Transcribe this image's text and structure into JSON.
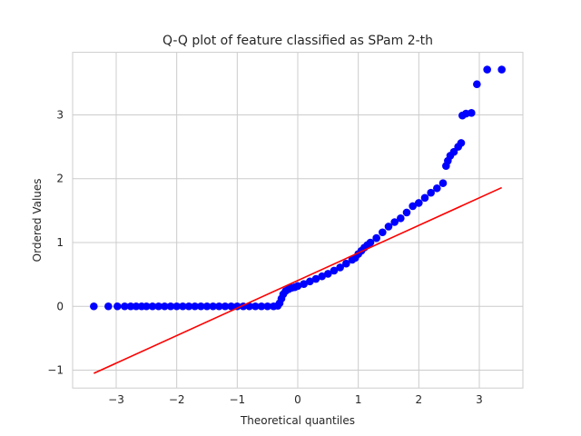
{
  "chart_data": {
    "type": "scatter",
    "title": "Q-Q plot of feature classified as SPam 2-th",
    "xlabel": "Theoretical quantiles",
    "ylabel": "Ordered Values",
    "xlim": [
      -3.72,
      3.72
    ],
    "ylim": [
      -1.28,
      3.98
    ],
    "x_ticks": [
      -3,
      -2,
      -1,
      0,
      1,
      2,
      3
    ],
    "y_ticks": [
      -1,
      0,
      1,
      2,
      3
    ],
    "x_tick_labels": [
      "−3",
      "−2",
      "−1",
      "0",
      "1",
      "2",
      "3"
    ],
    "y_tick_labels": [
      "−1",
      "0",
      "1",
      "2",
      "3"
    ],
    "grid": true,
    "series": [
      {
        "kind": "points",
        "color": "#0000ff",
        "points": [
          [
            -3.37,
            0.0
          ],
          [
            -3.13,
            0.0
          ],
          [
            -2.98,
            0.0
          ],
          [
            -2.86,
            0.0
          ],
          [
            -2.76,
            0.0
          ],
          [
            -2.67,
            0.0
          ],
          [
            -2.58,
            0.0
          ],
          [
            -2.5,
            0.0
          ],
          [
            -2.4,
            0.0
          ],
          [
            -2.3,
            0.0
          ],
          [
            -2.2,
            0.0
          ],
          [
            -2.1,
            0.0
          ],
          [
            -2.0,
            0.0
          ],
          [
            -1.9,
            0.0
          ],
          [
            -1.8,
            0.0
          ],
          [
            -1.7,
            0.0
          ],
          [
            -1.6,
            0.0
          ],
          [
            -1.5,
            0.0
          ],
          [
            -1.4,
            0.0
          ],
          [
            -1.3,
            0.0
          ],
          [
            -1.2,
            0.0
          ],
          [
            -1.1,
            0.0
          ],
          [
            -1.0,
            0.0
          ],
          [
            -0.9,
            0.0
          ],
          [
            -0.8,
            0.0
          ],
          [
            -0.7,
            0.0
          ],
          [
            -0.6,
            0.0
          ],
          [
            -0.5,
            0.0
          ],
          [
            -0.4,
            0.0
          ],
          [
            -0.33,
            0.01
          ],
          [
            -0.3,
            0.05
          ],
          [
            -0.27,
            0.12
          ],
          [
            -0.24,
            0.19
          ],
          [
            -0.2,
            0.24
          ],
          [
            -0.15,
            0.27
          ],
          [
            -0.1,
            0.29
          ],
          [
            -0.05,
            0.3
          ],
          [
            0.0,
            0.32
          ],
          [
            0.1,
            0.35
          ],
          [
            0.2,
            0.39
          ],
          [
            0.3,
            0.43
          ],
          [
            0.4,
            0.47
          ],
          [
            0.5,
            0.51
          ],
          [
            0.6,
            0.56
          ],
          [
            0.7,
            0.61
          ],
          [
            0.8,
            0.67
          ],
          [
            0.9,
            0.73
          ],
          [
            0.95,
            0.76
          ],
          [
            1.0,
            0.82
          ],
          [
            1.05,
            0.87
          ],
          [
            1.1,
            0.92
          ],
          [
            1.15,
            0.96
          ],
          [
            1.2,
            1.0
          ],
          [
            1.3,
            1.07
          ],
          [
            1.4,
            1.16
          ],
          [
            1.5,
            1.25
          ],
          [
            1.6,
            1.32
          ],
          [
            1.7,
            1.38
          ],
          [
            1.8,
            1.47
          ],
          [
            1.9,
            1.57
          ],
          [
            2.0,
            1.62
          ],
          [
            2.1,
            1.7
          ],
          [
            2.2,
            1.78
          ],
          [
            2.3,
            1.85
          ],
          [
            2.4,
            1.93
          ],
          [
            2.45,
            2.2
          ],
          [
            2.48,
            2.28
          ],
          [
            2.52,
            2.36
          ],
          [
            2.58,
            2.42
          ],
          [
            2.65,
            2.5
          ],
          [
            2.7,
            2.56
          ],
          [
            2.72,
            2.99
          ],
          [
            2.78,
            3.02
          ],
          [
            2.87,
            3.03
          ],
          [
            2.96,
            3.48
          ],
          [
            3.13,
            3.71
          ],
          [
            3.37,
            3.71
          ]
        ]
      },
      {
        "kind": "line",
        "color": "#ff0000",
        "points": [
          [
            -3.37,
            -1.05
          ],
          [
            3.37,
            1.86
          ]
        ]
      }
    ]
  }
}
